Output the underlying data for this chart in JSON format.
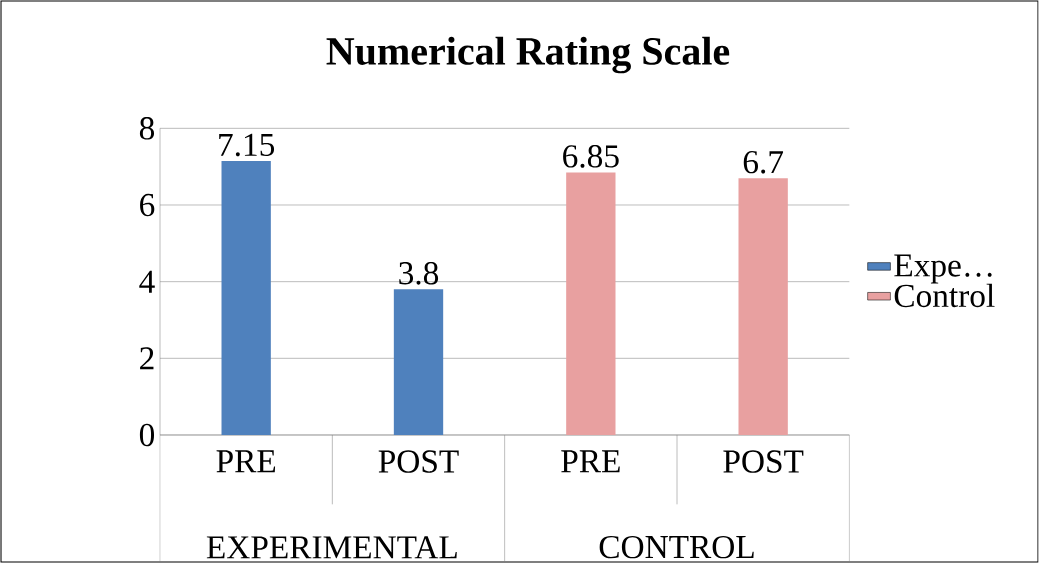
{
  "chart_data": {
    "type": "bar",
    "title": "Numerical Rating Scale",
    "categories": [
      "PRE",
      "POST",
      "PRE",
      "POST"
    ],
    "annotations": [
      "EXPERIMENTAL",
      "CONTROL"
    ],
    "series": [
      {
        "name": "Expe…",
        "color": "#4f81bd",
        "values": [
          7.15,
          3.8,
          null,
          null
        ]
      },
      {
        "name": "Control",
        "color": "#e8a0a0",
        "values": [
          null,
          null,
          6.85,
          6.7
        ]
      }
    ],
    "ylim": [
      0,
      8
    ],
    "yticks": [
      0,
      2,
      4,
      6,
      8
    ],
    "grid": "y",
    "legend": "right",
    "data_labels": true
  }
}
